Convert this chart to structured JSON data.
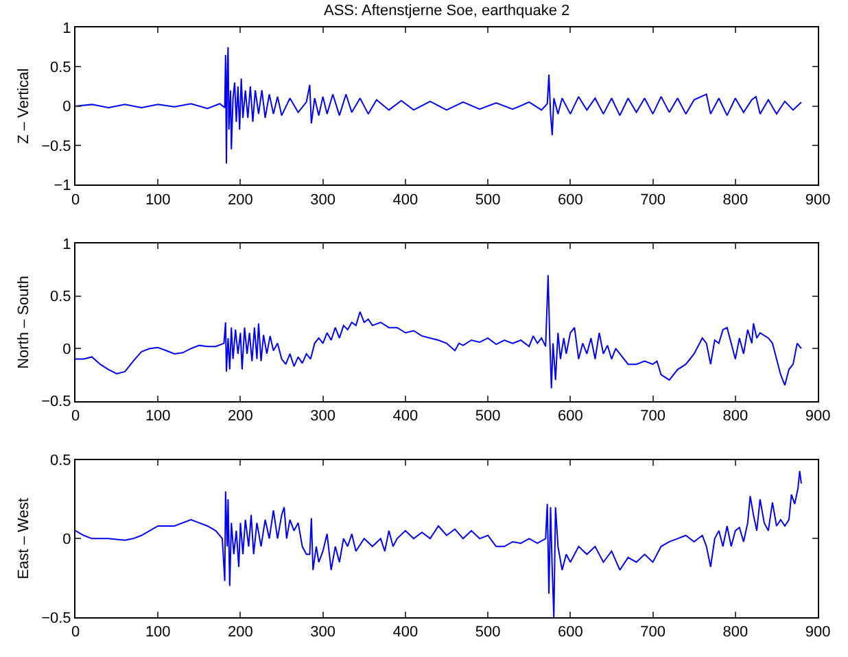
{
  "chart_data": [
    {
      "type": "line",
      "title": "ASS: Aftenstjerne Soe, earthquake 2",
      "ylabel": "Z – Vertical",
      "color": "#0000ff",
      "line_style": "solid",
      "x": [
        0,
        20,
        40,
        60,
        80,
        100,
        120,
        140,
        160,
        175,
        181,
        182,
        183,
        184,
        185,
        186,
        188,
        189,
        191,
        193,
        195,
        197,
        199,
        201,
        203,
        206,
        209,
        212,
        215,
        218,
        222,
        226,
        230,
        235,
        240,
        245,
        250,
        260,
        270,
        280,
        284,
        286,
        290,
        295,
        300,
        305,
        312,
        320,
        328,
        335,
        345,
        355,
        365,
        380,
        395,
        410,
        430,
        450,
        470,
        490,
        510,
        530,
        550,
        565,
        572,
        574,
        576,
        578,
        580,
        585,
        590,
        600,
        610,
        620,
        630,
        640,
        650,
        660,
        670,
        680,
        690,
        700,
        710,
        720,
        730,
        740,
        750,
        765,
        770,
        780,
        790,
        800,
        810,
        820,
        825,
        830,
        840,
        850,
        860,
        870,
        880
      ],
      "values": [
        0,
        0.02,
        -0.02,
        0.02,
        -0.02,
        0.02,
        -0.01,
        0.03,
        -0.03,
        0.03,
        -0.02,
        0.65,
        -0.73,
        0.4,
        0.75,
        -0.3,
        0.2,
        -0.55,
        0.1,
        0.3,
        -0.2,
        0.25,
        -0.3,
        0.35,
        -0.15,
        0.2,
        -0.15,
        0.25,
        -0.2,
        0.2,
        -0.1,
        0.2,
        -0.15,
        0.15,
        -0.1,
        0.12,
        -0.12,
        0.1,
        -0.08,
        0.05,
        0.27,
        -0.22,
        0.1,
        -0.12,
        0.12,
        -0.1,
        0.15,
        -0.12,
        0.15,
        -0.08,
        0.1,
        -0.1,
        0.08,
        -0.05,
        0.07,
        -0.05,
        0.06,
        -0.05,
        0.05,
        -0.04,
        0.04,
        -0.04,
        0.05,
        -0.05,
        0.03,
        0.4,
        -0.1,
        -0.37,
        0.1,
        -0.1,
        0.1,
        -0.1,
        0.12,
        -0.05,
        0.1,
        -0.1,
        0.1,
        -0.12,
        0.1,
        -0.08,
        0.1,
        -0.1,
        0.12,
        -0.08,
        0.1,
        -0.1,
        0.08,
        0.15,
        -0.1,
        0.1,
        -0.12,
        0.1,
        -0.08,
        0.08,
        0.12,
        -0.1,
        0.08,
        -0.1,
        0.06,
        -0.05,
        0.05
      ],
      "xlim": [
        0,
        900
      ],
      "xticks": [
        0,
        100,
        200,
        300,
        400,
        500,
        600,
        700,
        800,
        900
      ],
      "ylim": [
        -1,
        1
      ],
      "yticks": [
        -1,
        -0.5,
        0,
        0.5,
        1
      ]
    },
    {
      "type": "line",
      "ylabel": "North – South",
      "color": "#0000ff",
      "line_style": "solid",
      "x": [
        0,
        10,
        20,
        30,
        40,
        50,
        60,
        70,
        80,
        90,
        100,
        110,
        120,
        130,
        140,
        150,
        160,
        170,
        180,
        182,
        183,
        185,
        187,
        189,
        191,
        194,
        197,
        200,
        202,
        205,
        208,
        211,
        214,
        217,
        220,
        222,
        225,
        228,
        232,
        236,
        240,
        245,
        250,
        255,
        260,
        265,
        270,
        275,
        280,
        285,
        290,
        295,
        300,
        305,
        310,
        315,
        320,
        325,
        330,
        335,
        340,
        345,
        350,
        355,
        360,
        370,
        380,
        390,
        400,
        410,
        420,
        430,
        440,
        450,
        460,
        465,
        470,
        480,
        490,
        500,
        510,
        520,
        530,
        540,
        550,
        555,
        560,
        565,
        570,
        573,
        575,
        577,
        579,
        582,
        585,
        588,
        592,
        595,
        600,
        605,
        610,
        615,
        620,
        625,
        630,
        635,
        640,
        645,
        650,
        655,
        660,
        670,
        680,
        690,
        700,
        705,
        710,
        720,
        730,
        740,
        750,
        760,
        765,
        770,
        775,
        780,
        785,
        790,
        795,
        800,
        805,
        810,
        815,
        820,
        822,
        826,
        830,
        840,
        845,
        850,
        855,
        860,
        865,
        870,
        875,
        878,
        880
      ],
      "values": [
        -0.1,
        -0.1,
        -0.08,
        -0.15,
        -0.2,
        -0.24,
        -0.22,
        -0.12,
        -0.03,
        0,
        0.01,
        -0.02,
        -0.05,
        -0.04,
        0,
        0.03,
        0.02,
        0.02,
        0.05,
        0.25,
        -0.22,
        0.1,
        -0.2,
        0.2,
        -0.1,
        0.18,
        -0.05,
        0.15,
        -0.2,
        0.2,
        -0.05,
        0.15,
        -0.12,
        0.2,
        -0.1,
        0.24,
        -0.12,
        0.13,
        -0.05,
        0.12,
        -0.02,
        0.05,
        -0.1,
        -0.15,
        -0.05,
        -0.17,
        -0.08,
        -0.14,
        -0.05,
        -0.1,
        0.05,
        0.1,
        0.05,
        0.15,
        0.08,
        0.2,
        0.1,
        0.22,
        0.18,
        0.25,
        0.22,
        0.35,
        0.25,
        0.28,
        0.22,
        0.25,
        0.2,
        0.2,
        0.15,
        0.17,
        0.12,
        0.1,
        0.08,
        0.05,
        -0.02,
        0.05,
        0.03,
        0.08,
        0.06,
        0.1,
        0.04,
        0.08,
        0.05,
        0.08,
        0.02,
        0.12,
        0.05,
        0.1,
        0.02,
        0.7,
        0.1,
        -0.38,
        0.05,
        -0.3,
        0.15,
        -0.1,
        0.1,
        -0.05,
        0.15,
        0.2,
        -0.1,
        0.05,
        -0.05,
        0.1,
        -0.1,
        0.15,
        -0.05,
        0.03,
        -0.1,
        0,
        -0.05,
        -0.15,
        -0.15,
        -0.12,
        -0.15,
        -0.12,
        -0.25,
        -0.3,
        -0.2,
        -0.15,
        -0.05,
        0.1,
        0.05,
        -0.15,
        0.08,
        0.05,
        0.18,
        0.2,
        0.05,
        -0.1,
        0.1,
        -0.05,
        0.18,
        0.05,
        0.24,
        0.1,
        0.15,
        0.1,
        0.05,
        -0.1,
        -0.25,
        -0.35,
        -0.2,
        -0.15,
        0.05,
        0.02,
        0
      ],
      "xlim": [
        0,
        900
      ],
      "xticks": [
        0,
        100,
        200,
        300,
        400,
        500,
        600,
        700,
        800,
        900
      ],
      "ylim": [
        -0.5,
        1
      ],
      "yticks": [
        -0.5,
        0,
        0.5,
        1
      ]
    },
    {
      "type": "line",
      "ylabel": "East – West",
      "color": "#0000ff",
      "line_style": "solid",
      "x": [
        0,
        10,
        20,
        40,
        60,
        70,
        80,
        90,
        100,
        120,
        140,
        160,
        170,
        178,
        181,
        182,
        184,
        185,
        187,
        189,
        192,
        195,
        198,
        200,
        203,
        206,
        210,
        213,
        216,
        220,
        225,
        230,
        235,
        240,
        245,
        250,
        253,
        256,
        260,
        265,
        270,
        275,
        280,
        284,
        286,
        288,
        292,
        295,
        300,
        305,
        310,
        315,
        320,
        325,
        330,
        335,
        340,
        350,
        360,
        370,
        375,
        380,
        385,
        390,
        400,
        410,
        420,
        430,
        440,
        450,
        460,
        470,
        480,
        490,
        500,
        510,
        520,
        530,
        540,
        550,
        560,
        570,
        572,
        574,
        576,
        578,
        580,
        582,
        585,
        590,
        595,
        600,
        610,
        620,
        630,
        640,
        650,
        660,
        670,
        680,
        690,
        700,
        710,
        720,
        730,
        740,
        750,
        760,
        765,
        770,
        775,
        780,
        785,
        790,
        795,
        800,
        805,
        810,
        815,
        818,
        822,
        826,
        830,
        835,
        840,
        845,
        850,
        855,
        860,
        865,
        868,
        872,
        876,
        878,
        880
      ],
      "values": [
        0.05,
        0.02,
        0,
        0,
        -0.01,
        0,
        0.02,
        0.05,
        0.08,
        0.08,
        0.12,
        0.08,
        0.05,
        0,
        -0.27,
        0.3,
        -0.05,
        0.25,
        -0.3,
        0.1,
        -0.1,
        0.05,
        -0.18,
        0.1,
        -0.1,
        0.12,
        -0.05,
        0.15,
        -0.1,
        0.1,
        -0.05,
        0.12,
        0,
        0.18,
        0,
        0.15,
        0.2,
        0,
        0.12,
        0.05,
        0.1,
        -0.05,
        -0.1,
        -0.1,
        0.13,
        -0.2,
        -0.05,
        -0.15,
        -0.08,
        0.03,
        -0.2,
        -0.05,
        -0.15,
        0,
        -0.05,
        0.03,
        -0.08,
        0,
        -0.05,
        0,
        -0.08,
        0.05,
        -0.05,
        0,
        0.05,
        0,
        0.04,
        0,
        0.08,
        0.02,
        0.06,
        0,
        0.05,
        0,
        0.02,
        -0.05,
        -0.05,
        -0.02,
        -0.03,
        0,
        -0.03,
        0,
        0.22,
        -0.35,
        0.2,
        -0.2,
        -0.5,
        0.2,
        -0.05,
        -0.2,
        -0.1,
        -0.15,
        -0.05,
        -0.1,
        -0.05,
        -0.15,
        -0.08,
        -0.2,
        -0.12,
        -0.15,
        -0.1,
        -0.15,
        -0.05,
        -0.02,
        0,
        0.02,
        -0.02,
        0.02,
        -0.05,
        -0.18,
        0,
        0.05,
        -0.05,
        0.08,
        -0.05,
        0.05,
        0.07,
        -0.02,
        0.1,
        0.27,
        0.15,
        0.05,
        0.25,
        0.1,
        0.05,
        0.23,
        0.08,
        0.12,
        0.08,
        0.12,
        0.28,
        0.22,
        0.32,
        0.43,
        0.35
      ],
      "xlim": [
        0,
        900
      ],
      "xticks": [
        0,
        100,
        200,
        300,
        400,
        500,
        600,
        700,
        800,
        900
      ],
      "ylim": [
        -0.5,
        0.5
      ],
      "yticks": [
        -0.5,
        0,
        0.5
      ]
    }
  ]
}
